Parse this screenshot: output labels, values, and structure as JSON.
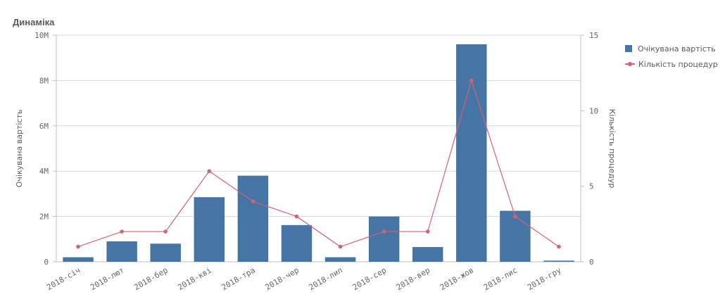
{
  "page": {
    "title": "Динаміка"
  },
  "colors": {
    "bar": "#4674a5",
    "line": "#d26275",
    "grid": "#d9d9d9",
    "axis": "#bfbfbf"
  },
  "chart_data": {
    "type": "bar",
    "title": "Динаміка",
    "categories": [
      "2018-січ",
      "2018-лют",
      "2018-бер",
      "2018-кві",
      "2018-тра",
      "2018-чер",
      "2018-лип",
      "2018-сер",
      "2018-вер",
      "2018-жов",
      "2018-лис",
      "2018-гру"
    ],
    "series": [
      {
        "name": "Очікувана вартість",
        "type": "bar",
        "axis": "left",
        "values": [
          200000,
          900000,
          800000,
          2850000,
          3800000,
          1620000,
          200000,
          2000000,
          650000,
          9600000,
          2250000,
          50000
        ]
      },
      {
        "name": "Кількість процедур",
        "type": "line",
        "axis": "right",
        "values": [
          1,
          2,
          2,
          6,
          4,
          3,
          1,
          2,
          2,
          12,
          3,
          1
        ]
      }
    ],
    "ylabel": "Очікувана вартість",
    "y2label": "Кількість процедур",
    "ylim": [
      0,
      10000000
    ],
    "y2lim": [
      0,
      15
    ],
    "yticks": [
      "0",
      "2M",
      "4M",
      "6M",
      "8M",
      "10M"
    ],
    "y2ticks": [
      "0",
      "5",
      "10",
      "15"
    ],
    "grid": true,
    "legend_position": "right"
  }
}
